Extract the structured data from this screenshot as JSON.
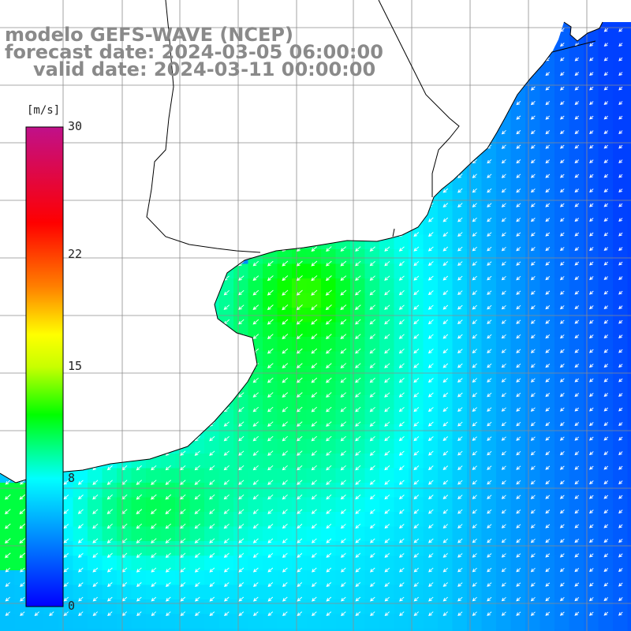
{
  "header": {
    "model_line": "modelo GEFS-WAVE (NCEP)",
    "forecast_line": "forecast date: 2024-03-05 06:00:00",
    "valid_line": "valid date: 2024-03-11 00:00:00"
  },
  "colorbar": {
    "unit": "[m/s]",
    "ticks": [
      {
        "label": "30",
        "value": 30
      },
      {
        "label": "22",
        "value": 22
      },
      {
        "label": "15",
        "value": 15
      },
      {
        "label": "8",
        "value": 8
      },
      {
        "label": "0",
        "value": 0
      }
    ],
    "stops": [
      {
        "value": 0,
        "color": "#0000ff"
      },
      {
        "value": 4,
        "color": "#0080ff"
      },
      {
        "value": 8,
        "color": "#00ffff"
      },
      {
        "value": 12,
        "color": "#00ff00"
      },
      {
        "value": 15,
        "color": "#c8ff00"
      },
      {
        "value": 17,
        "color": "#ffff00"
      },
      {
        "value": 20,
        "color": "#ff8000"
      },
      {
        "value": 24,
        "color": "#ff0000"
      },
      {
        "value": 30,
        "color": "#c0108a"
      }
    ]
  },
  "colors": {
    "land": "#ffffff",
    "coastline": "#000000",
    "grid": "#8c8c8c",
    "arrow": "#ffffff",
    "title": "#8a8a8a"
  },
  "chart_data": {
    "type": "heatmap",
    "variable": "wind speed",
    "unit": "m/s",
    "vector_direction": "toward south-west"
  }
}
